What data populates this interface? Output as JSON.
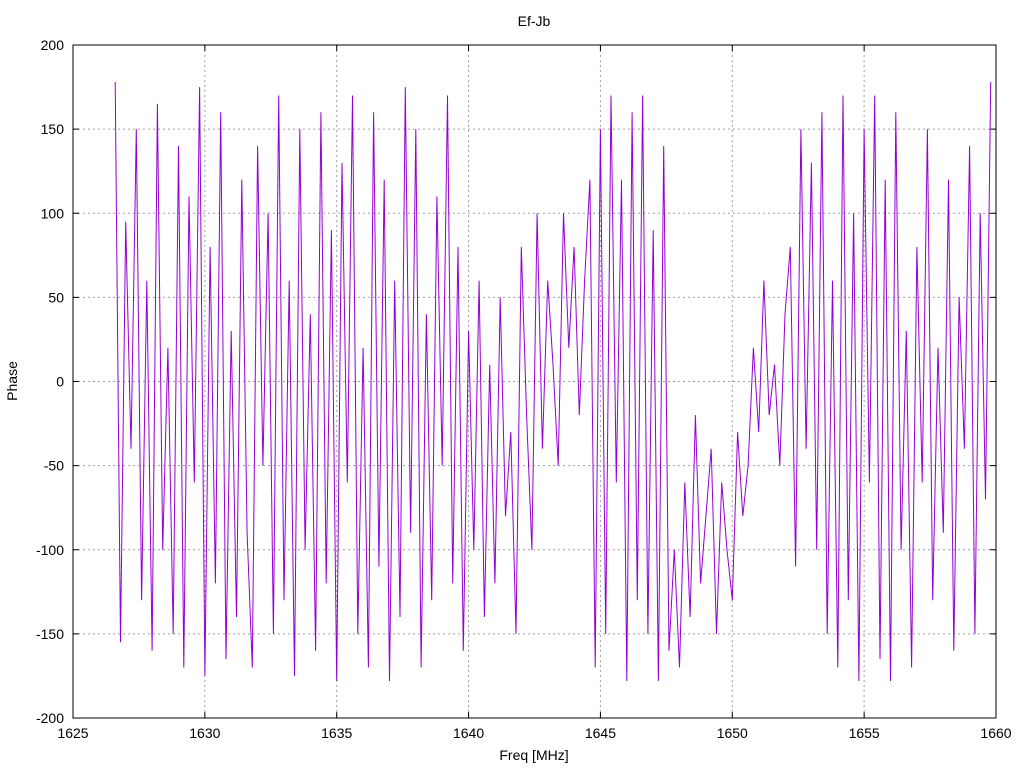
{
  "chart_data": {
    "type": "line",
    "title": "Ef-Jb",
    "xlabel": "Freq [MHz]",
    "ylabel": "Phase",
    "xlim": [
      1625,
      1660
    ],
    "ylim": [
      -200,
      200
    ],
    "xticks": [
      1625,
      1630,
      1635,
      1640,
      1645,
      1650,
      1655,
      1660
    ],
    "yticks": [
      -200,
      -150,
      -100,
      -50,
      0,
      50,
      100,
      150,
      200
    ],
    "grid": true,
    "color": "#9400d3",
    "x_start": 1626.6,
    "x_step": 0.2,
    "values": [
      178,
      -155,
      95,
      -40,
      150,
      -130,
      60,
      -160,
      165,
      -100,
      20,
      -150,
      140,
      -170,
      110,
      -60,
      175,
      -175,
      80,
      -120,
      160,
      -165,
      30,
      -140,
      120,
      -90,
      -170,
      140,
      -50,
      100,
      -150,
      170,
      -130,
      60,
      -175,
      150,
      -100,
      40,
      -160,
      160,
      -120,
      90,
      -178,
      130,
      -60,
      170,
      -150,
      20,
      -170,
      160,
      -110,
      120,
      -178,
      60,
      -140,
      175,
      -90,
      150,
      -170,
      40,
      -130,
      110,
      -50,
      170,
      -120,
      80,
      -160,
      30,
      -100,
      60,
      -140,
      10,
      -120,
      50,
      -80,
      -30,
      -150,
      80,
      -20,
      -100,
      100,
      -40,
      60,
      10,
      -50,
      100,
      20,
      80,
      -20,
      60,
      120,
      -170,
      150,
      -150,
      170,
      -60,
      120,
      -178,
      160,
      -130,
      170,
      -150,
      90,
      -178,
      140,
      -160,
      -100,
      -170,
      -60,
      -140,
      -20,
      -120,
      -80,
      -40,
      -150,
      -60,
      -100,
      -130,
      -30,
      -80,
      -50,
      20,
      -30,
      60,
      -20,
      10,
      -50,
      40,
      80,
      -110,
      150,
      -40,
      130,
      -100,
      160,
      -150,
      60,
      -170,
      170,
      -130,
      100,
      -178,
      150,
      -60,
      170,
      -165,
      120,
      -178,
      160,
      -100,
      30,
      -170,
      80,
      -60,
      150,
      -130,
      20,
      -90,
      120,
      -160,
      50,
      -40,
      140,
      -150,
      100,
      -70,
      178
    ]
  }
}
